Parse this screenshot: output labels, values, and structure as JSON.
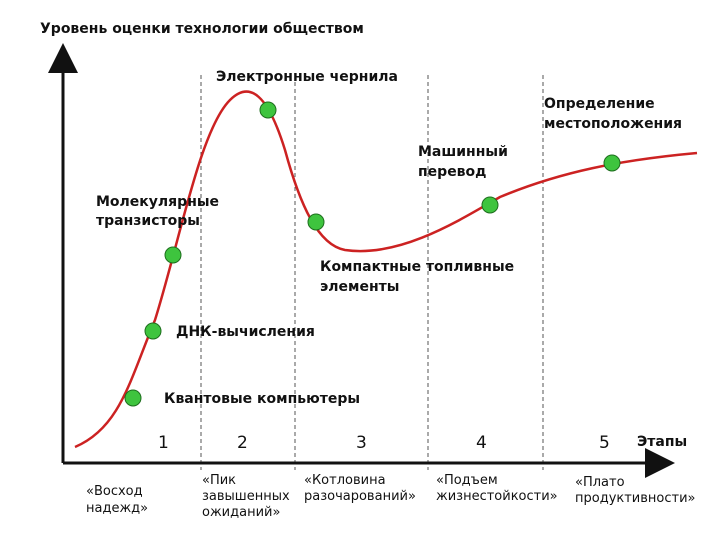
{
  "diagram": {
    "title": "Уровень оценки технологии обществом",
    "x_axis_label": "Этапы",
    "colors": {
      "curve": "#cc2222",
      "point": "#3ec43e",
      "point_stroke": "#1e6e1e",
      "axis": "#111111",
      "divider": "#555555"
    },
    "stages": [
      {
        "number": "1",
        "caption": [
          "«Восход",
          "надежд»"
        ]
      },
      {
        "number": "2",
        "caption": [
          "«Пик",
          "завышенных",
          "ожиданий»"
        ]
      },
      {
        "number": "3",
        "caption": [
          "«Котловина",
          "разочарований»"
        ]
      },
      {
        "number": "4",
        "caption": [
          "«Подъем",
          "жизнестойкости»"
        ]
      },
      {
        "number": "5",
        "caption": [
          "«Плато",
          "продуктивности»"
        ]
      }
    ],
    "technologies": [
      {
        "label": [
          "Квантовые компьютеры"
        ]
      },
      {
        "label": [
          "ДНК-вычисления"
        ]
      },
      {
        "label": [
          "Молекулярные",
          "транзисторы"
        ]
      },
      {
        "label": [
          "Электронные чернила"
        ]
      },
      {
        "label": [
          "Компактные топливные",
          "элементы"
        ]
      },
      {
        "label": [
          "Машинный",
          "перевод"
        ]
      },
      {
        "label": [
          "Определение",
          "местоположения"
        ]
      }
    ]
  }
}
